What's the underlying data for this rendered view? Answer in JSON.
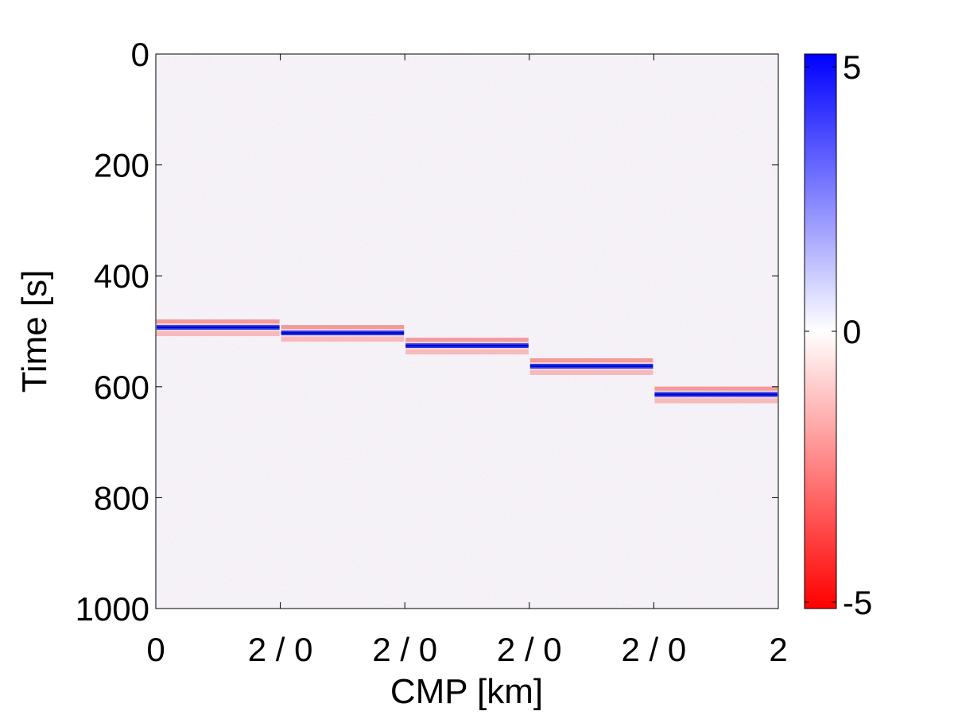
{
  "chart_data": {
    "type": "heatmap",
    "title": "",
    "xlabel": "CMP [km]",
    "ylabel": "Time [s]",
    "xticks": [
      "0",
      "2 / 0",
      "2 / 0",
      "2 / 0",
      "2 / 0",
      "2"
    ],
    "yticks": [
      0,
      200,
      400,
      600,
      800,
      1000
    ],
    "ylim": [
      0,
      1000
    ],
    "y_direction": "down",
    "panels": 5,
    "panel_x_range_km": [
      0,
      2
    ],
    "noise_level": "low random noise over whole section",
    "events": [
      {
        "panel": 1,
        "time": 493
      },
      {
        "panel": 2,
        "time": 503
      },
      {
        "panel": 3,
        "time": 526
      },
      {
        "panel": 4,
        "time": 563
      },
      {
        "panel": 5,
        "time": 614
      }
    ],
    "event_polarity": "blue trough with red side lobes",
    "colorbar": {
      "min": -5,
      "max": 5,
      "ticks": [
        "5",
        "0",
        "-5"
      ],
      "colors": {
        "low": "#ff0000",
        "mid": "#ffffff",
        "high": "#0000ff"
      }
    }
  }
}
